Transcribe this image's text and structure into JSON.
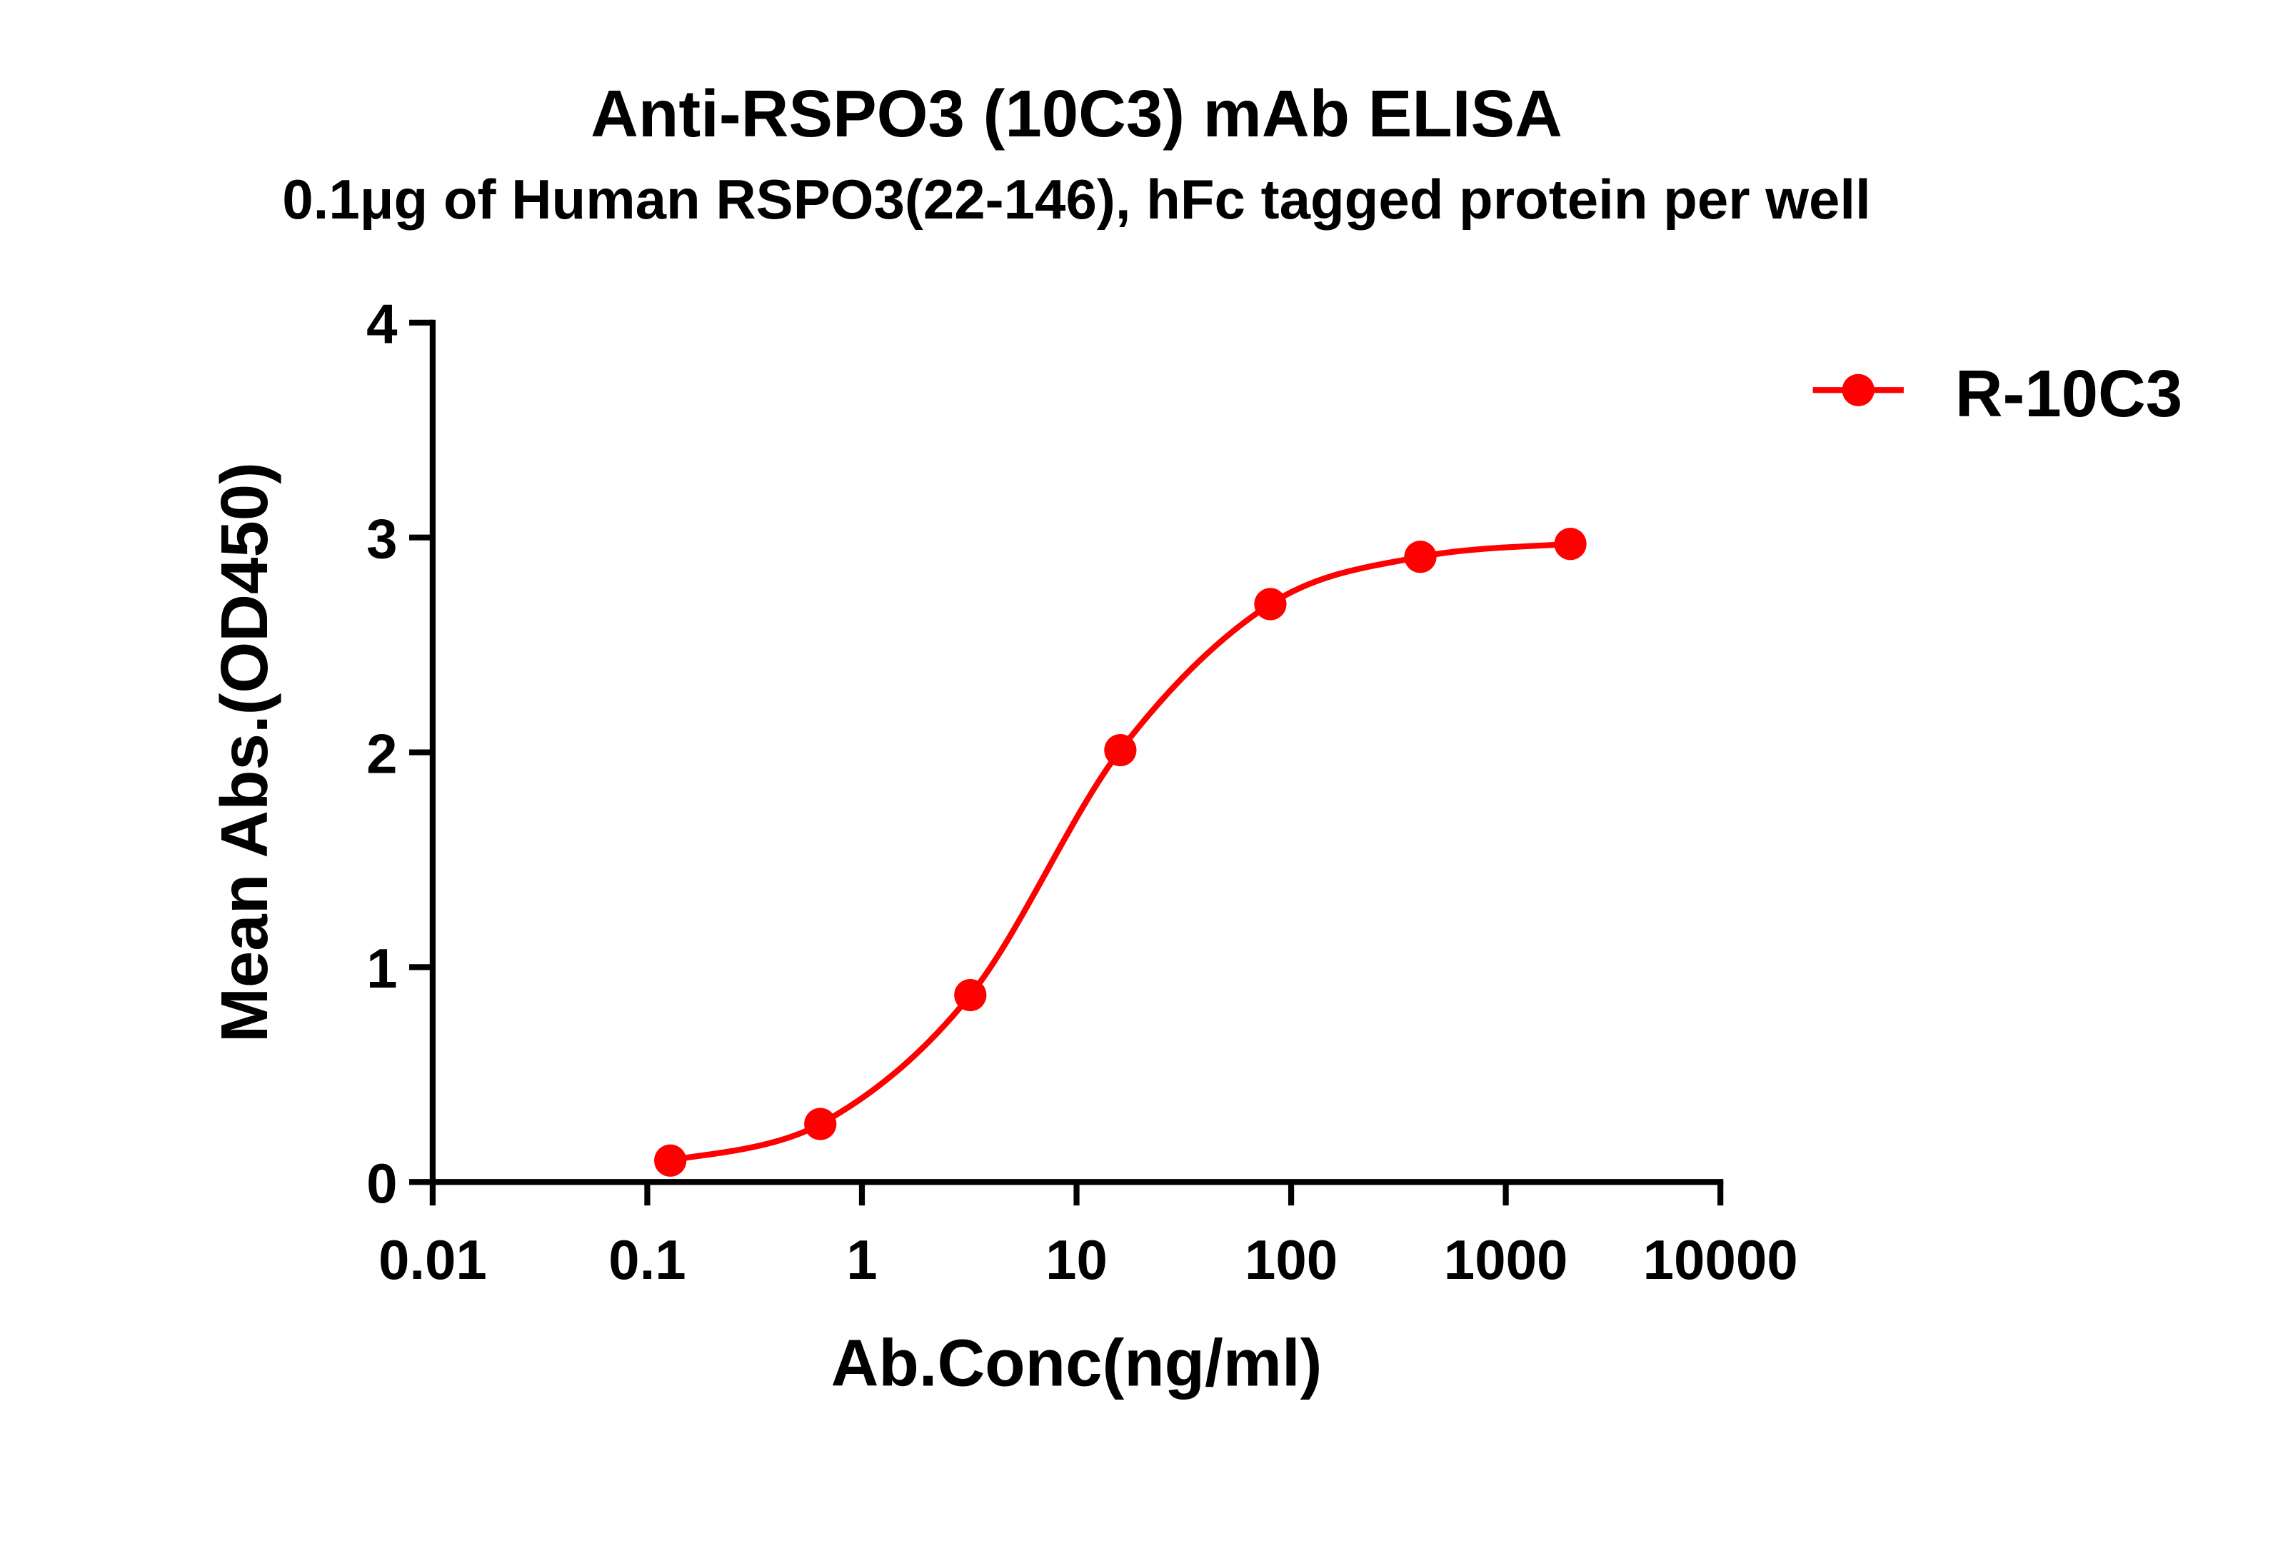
{
  "chart_data": {
    "type": "line",
    "title": "Anti-RSPO3 (10C3) mAb ELISA",
    "subtitle": "0.1μg of Human RSPO3(22-146), hFc tagged protein per well",
    "xlabel": "Ab.Conc(ng/ml)",
    "ylabel": "Mean Abs.(OD450)",
    "xscale": "log",
    "xlim": [
      0.01,
      10000
    ],
    "ylim": [
      0,
      4
    ],
    "xticks": [
      "0.01",
      "0.1",
      "1",
      "10",
      "100",
      "1000",
      "10000"
    ],
    "yticks": [
      "0",
      "1",
      "2",
      "3",
      "4"
    ],
    "grid": false,
    "legend_position": "top-right",
    "series": [
      {
        "name": "R-10C3",
        "color": "#ff0000",
        "marker": "circle",
        "x": [
          0.128,
          0.64,
          3.2,
          16,
          80,
          400,
          2000
        ],
        "y": [
          0.1,
          0.27,
          0.87,
          2.01,
          2.69,
          2.91,
          2.97
        ]
      }
    ]
  }
}
